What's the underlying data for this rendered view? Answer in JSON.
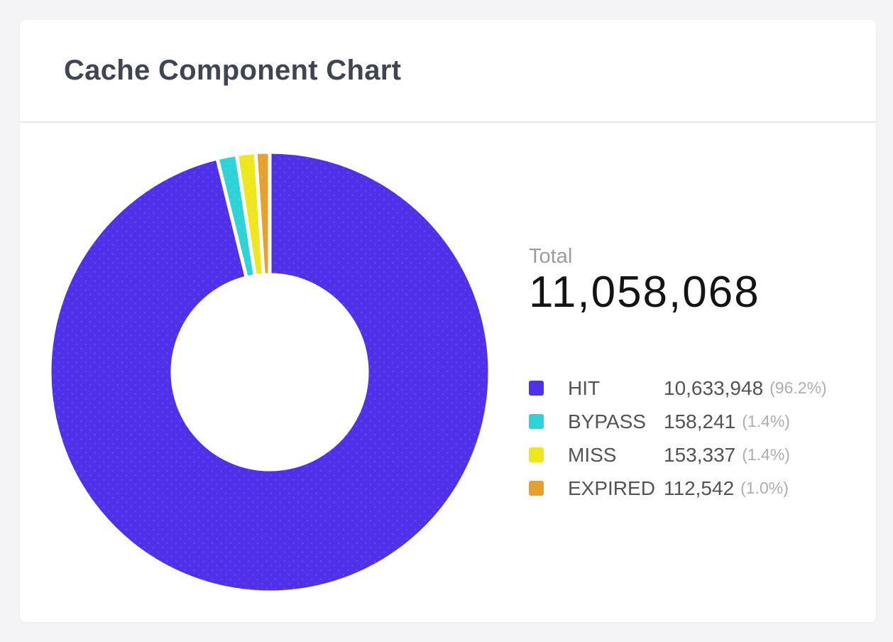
{
  "card": {
    "title": "Cache Component Chart"
  },
  "chart_data": {
    "type": "pie",
    "subtype": "donut",
    "title": "Cache Component Chart",
    "start_angle_deg": 0,
    "direction": "clockwise",
    "inner_radius_ratio": 0.44,
    "legend_position": "right",
    "total_label": "Total",
    "total": 11058068,
    "total_display": "11,058,068",
    "segments": [
      {
        "label": "HIT",
        "value": 10633948,
        "display": "10,633,948",
        "percent": 96.2,
        "percent_display": "(96.2%)",
        "color": "#5030E8"
      },
      {
        "label": "BYPASS",
        "value": 158241,
        "display": "158,241",
        "percent": 1.4,
        "percent_display": "(1.4%)",
        "color": "#2DD3D6"
      },
      {
        "label": "MISS",
        "value": 153337,
        "display": "153,337",
        "percent": 1.4,
        "percent_display": "(1.4%)",
        "color": "#EEE71E"
      },
      {
        "label": "EXPIRED",
        "value": 112542,
        "display": "112,542",
        "percent": 1.0,
        "percent_display": "(1.0%)",
        "color": "#E6A02B"
      }
    ]
  },
  "colors": {
    "page_background": "#F4F4F6",
    "card_background": "#FFFFFF",
    "divider": "#E9E9EB",
    "title_text": "#404552",
    "total_label_text": "#9B9CA1",
    "total_value_text": "#141414",
    "legend_text": "#515359",
    "percent_text": "#AEAEB2"
  }
}
